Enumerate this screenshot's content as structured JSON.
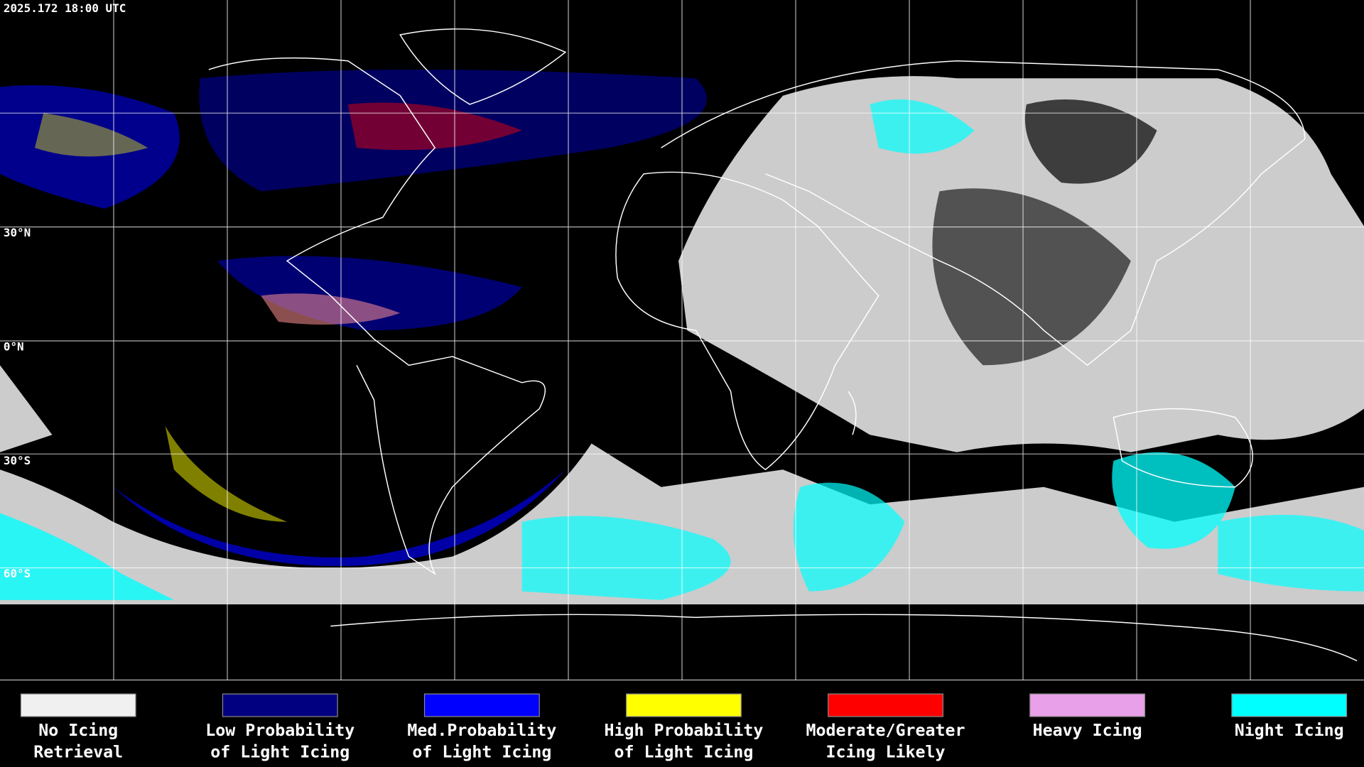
{
  "timestamp": "2025.172 18:00 UTC",
  "latitude_labels": [
    "30°N",
    "0°N",
    "30°S",
    "60°S"
  ],
  "legend": [
    {
      "lines": [
        "No Icing",
        "Retrieval"
      ],
      "color": "#f0f0f0"
    },
    {
      "lines": [
        "Low Probability",
        "of Light Icing"
      ],
      "color": "#000080"
    },
    {
      "lines": [
        "Med.Probability",
        "of Light Icing"
      ],
      "color": "#0000ff"
    },
    {
      "lines": [
        "High Probability",
        "of Light Icing"
      ],
      "color": "#ffff00"
    },
    {
      "lines": [
        "Moderate/Greater",
        "Icing Likely"
      ],
      "color": "#ff0000"
    },
    {
      "lines": [
        "Heavy Icing"
      ],
      "color": "#e8a0e8"
    },
    {
      "lines": [
        "Night Icing"
      ],
      "color": "#00ffff"
    }
  ]
}
